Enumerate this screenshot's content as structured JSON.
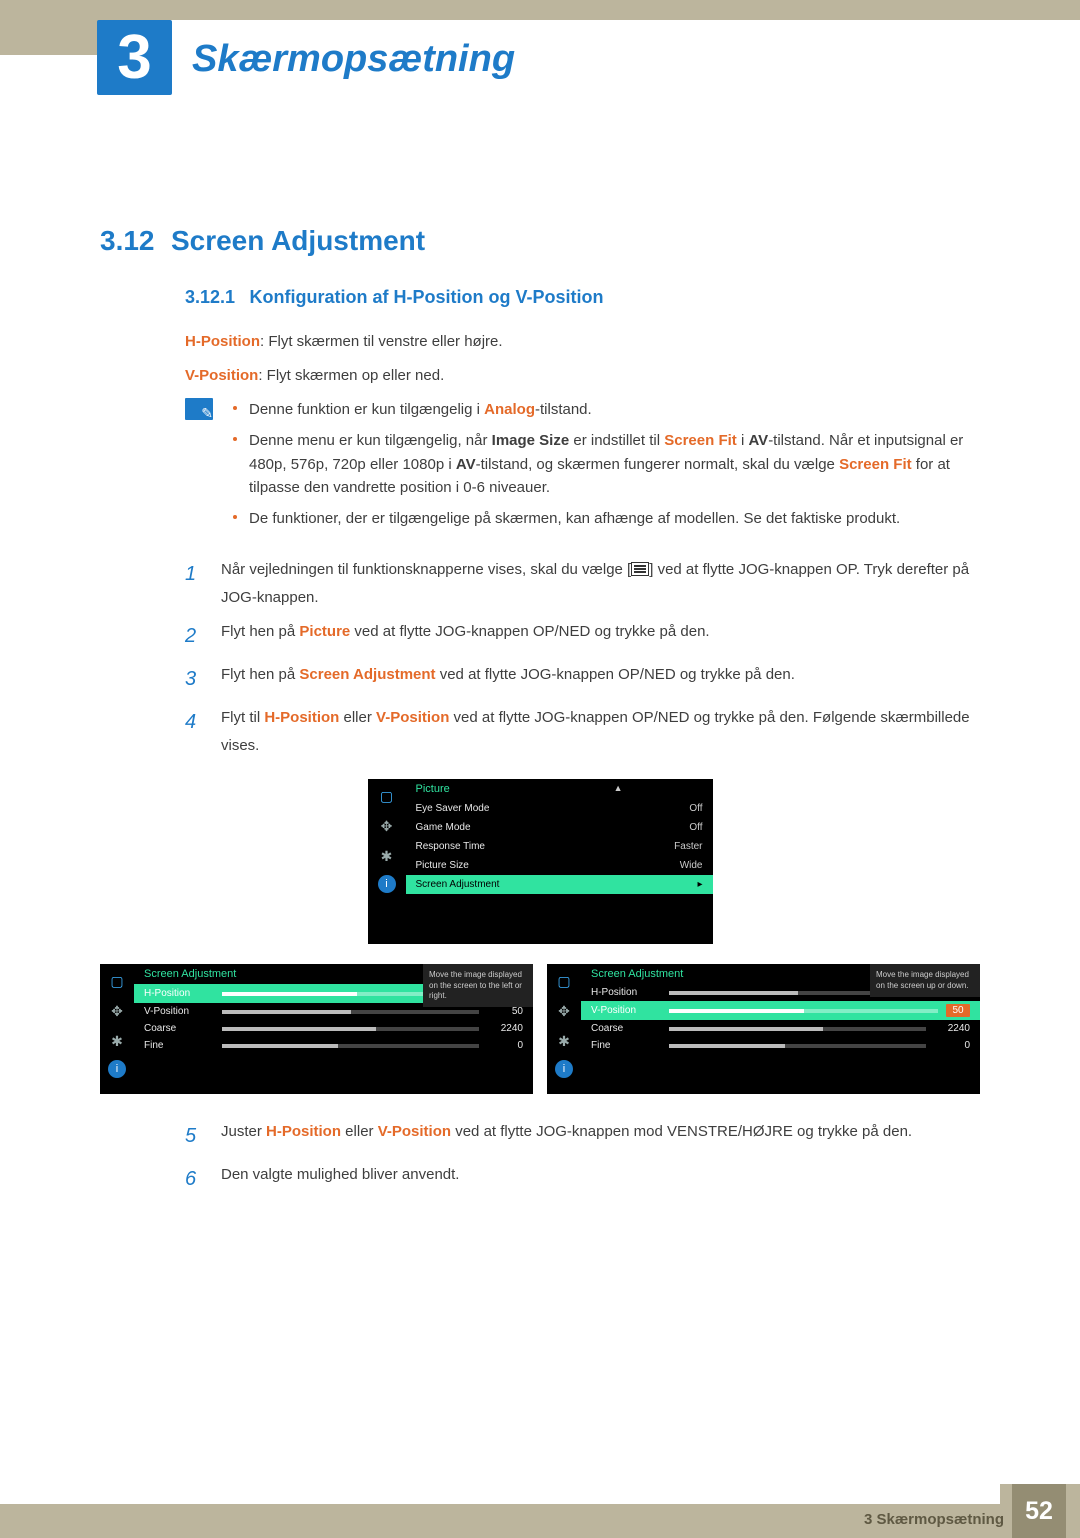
{
  "chapter": {
    "number": "3",
    "title": "Skærmopsætning"
  },
  "section": {
    "number": "3.12",
    "title": "Screen Adjustment"
  },
  "subsection": {
    "number": "3.12.1",
    "title": "Konfiguration af H-Position og V-Position"
  },
  "intro": {
    "hpos_label": "H-Position",
    "hpos_text": ": Flyt skærmen til venstre eller højre.",
    "vpos_label": "V-Position",
    "vpos_text": ": Flyt skærmen op eller ned."
  },
  "notes": {
    "n1_pre": "Denne funktion er kun tilgængelig i ",
    "n1_b": "Analog",
    "n1_post": "-tilstand.",
    "n2_pre": "Denne menu er kun tilgængelig, når ",
    "n2_b1": "Image Size",
    "n2_mid1": " er indstillet til ",
    "n2_b2": "Screen Fit",
    "n2_mid2": " i ",
    "n2_b3": "AV",
    "n2_mid3": "-tilstand. Når et inputsignal er 480p, 576p, 720p eller 1080p i ",
    "n2_b4": "AV",
    "n2_mid4": "-tilstand, og skærmen fungerer normalt, skal du vælge ",
    "n2_b5": "Screen Fit",
    "n2_post": " for at tilpasse den vandrette position i 0-6 niveauer.",
    "n3": "De funktioner, der er tilgængelige på skærmen, kan afhænge af modellen. Se det faktiske produkt."
  },
  "steps": {
    "s1_a": "Når vejledningen til funktionsknapperne vises, skal du vælge [",
    "s1_b": "] ved at flytte JOG-knappen OP. Tryk derefter på JOG-knappen.",
    "s2_a": "Flyt hen på ",
    "s2_b": "Picture",
    "s2_c": " ved at flytte JOG-knappen OP/NED og trykke på den.",
    "s3_a": "Flyt hen på ",
    "s3_b": "Screen Adjustment",
    "s3_c": " ved at flytte JOG-knappen OP/NED og trykke på den.",
    "s4_a": "Flyt til ",
    "s4_b": "H-Position",
    "s4_m": " eller ",
    "s4_c": "V-Position",
    "s4_d": " ved at flytte JOG-knappen OP/NED og trykke på den. Følgende skærmbillede vises.",
    "s5_a": "Juster ",
    "s5_b": "H-Position",
    "s5_m": " eller ",
    "s5_c": "V-Position",
    "s5_d": " ved at flytte JOG-knappen mod VENSTRE/HØJRE og trykke på den.",
    "s6": "Den valgte mulighed bliver anvendt."
  },
  "osd_main": {
    "header": "Picture",
    "rows": [
      {
        "label": "Eye Saver Mode",
        "value": "Off"
      },
      {
        "label": "Game Mode",
        "value": "Off"
      },
      {
        "label": "Response Time",
        "value": "Faster"
      },
      {
        "label": "Picture Size",
        "value": "Wide"
      },
      {
        "label": "Screen Adjustment",
        "value": "▸",
        "selected": true
      }
    ]
  },
  "osd_small_header": "Screen Adjustment",
  "osd_left": {
    "tip": "Move the image displayed on the screen to the left or right.",
    "rows": [
      {
        "label": "H-Position",
        "value": "50",
        "fill": 50,
        "selected": true
      },
      {
        "label": "V-Position",
        "value": "50",
        "fill": 50
      },
      {
        "label": "Coarse",
        "value": "2240",
        "fill": 60
      },
      {
        "label": "Fine",
        "value": "0",
        "fill": 45
      }
    ]
  },
  "osd_right": {
    "tip": "Move the image displayed on the screen up or down.",
    "rows": [
      {
        "label": "H-Position",
        "value": "50",
        "fill": 50
      },
      {
        "label": "V-Position",
        "value": "50",
        "fill": 50,
        "selected": true
      },
      {
        "label": "Coarse",
        "value": "2240",
        "fill": 60
      },
      {
        "label": "Fine",
        "value": "0",
        "fill": 45
      }
    ]
  },
  "footer": {
    "chapter_ref": "3 Skærmopsætning",
    "page": "52"
  }
}
